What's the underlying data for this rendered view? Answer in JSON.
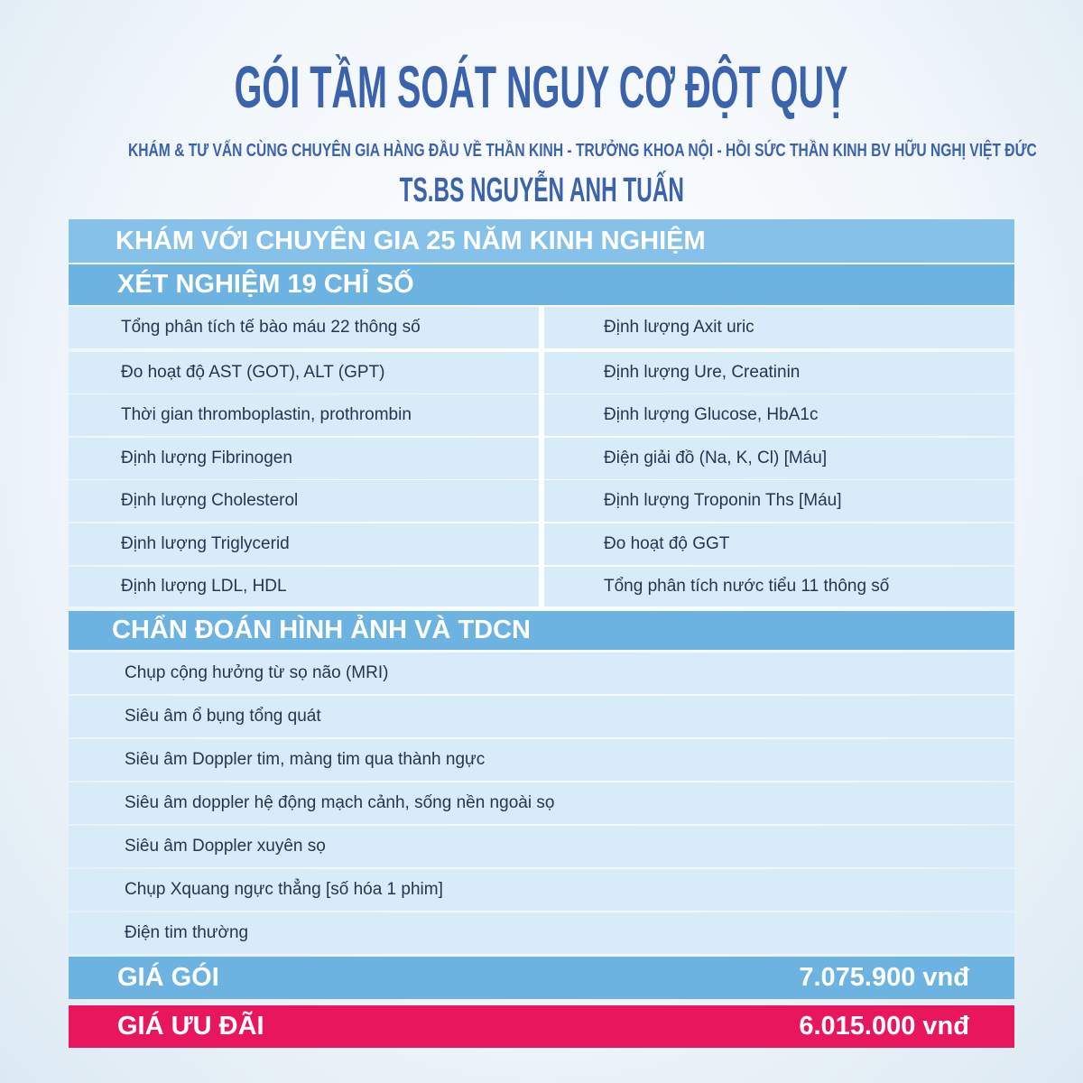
{
  "header": {
    "title": "GÓI TẦM SOÁT NGUY CƠ ĐỘT QUỴ",
    "subtitle": "KHÁM & TƯ VẤN CÙNG CHUYÊN GIA HÀNG ĐẦU VỀ THẦN KINH - TRƯỞNG KHOA NỘI - HỒI SỨC THẦN KINH BV HỮU NGHỊ VIỆT ĐỨC",
    "doctor": "TS.BS NGUYỄN ANH TUẤN"
  },
  "consultation": {
    "title": "KHÁM VỚI CHUYÊN GIA 25 NĂM KINH NGHIỆM"
  },
  "lab_tests": {
    "title": "XÉT NGHIỆM 19 CHỈ SỐ",
    "rows": [
      [
        "Tổng phân tích tế bào máu 22 thông số",
        "Định lượng Axit uric"
      ],
      [
        "Đo hoạt độ AST (GOT), ALT (GPT)",
        "Định lượng Ure, Creatinin"
      ],
      [
        "Thời gian thromboplastin, prothrombin",
        "Định lượng Glucose, HbA1c"
      ],
      [
        "Định lượng Fibrinogen",
        "Điện giải đồ (Na, K, Cl) [Máu]"
      ],
      [
        "Định lượng Cholesterol",
        "Định lượng Troponin Ths [Máu]"
      ],
      [
        "Định lượng Triglycerid",
        "Đo hoạt độ GGT"
      ],
      [
        "Định lượng LDL, HDL",
        "Tổng phân tích nước tiểu 11 thông số"
      ]
    ]
  },
  "imaging": {
    "title": "CHẨN ĐOÁN HÌNH ẢNH VÀ TDCN",
    "items": [
      "Chụp cộng hưởng từ sọ não (MRI)",
      "Siêu âm ổ bụng tổng quát",
      "Siêu âm Doppler tim, màng tim qua thành ngực",
      "Siêu âm doppler hệ động mạch cảnh, sống nền ngoài sọ",
      "Siêu âm Doppler xuyên sọ",
      "Chụp Xquang ngực thẳng [số hóa 1 phim]",
      "Điện tim thường"
    ]
  },
  "pricing": {
    "package": {
      "label": "GIÁ GÓI",
      "price": "7.075.900 vnđ"
    },
    "offer": {
      "label": "GIÁ ƯU ĐÃI",
      "price": "6.015.000 vnđ"
    }
  }
}
